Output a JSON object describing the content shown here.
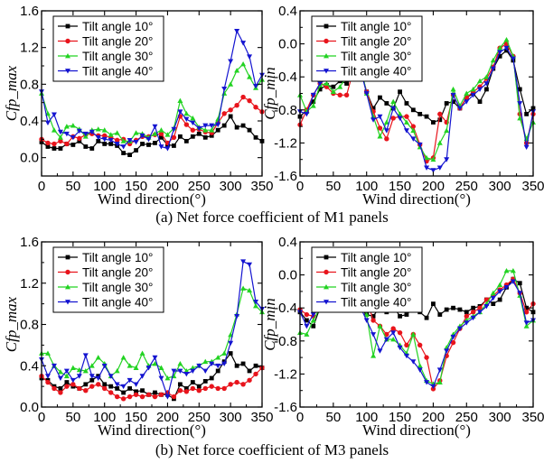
{
  "captions": [
    "(a) Net force coefficient of M1 panels",
    "(b) Net force coefficient of M3 panels"
  ],
  "series_colors": [
    "#000000",
    "#e8141c",
    "#22d322",
    "#1414d0"
  ],
  "chart_data": [
    {
      "type": "line",
      "xlabel": "Wind direction(°)",
      "ylabel": "Cfp_max",
      "xlim": [
        0,
        350
      ],
      "ylim": [
        -0.2,
        1.6
      ],
      "xticks": [
        "0",
        "50",
        "100",
        "150",
        "200",
        "250",
        "300",
        "350"
      ],
      "yticks": [
        "0.0",
        "0.4",
        "0.8",
        "1.2",
        "1.6"
      ],
      "legend_position": "top-left",
      "x": [
        0,
        10,
        20,
        30,
        40,
        50,
        60,
        70,
        80,
        90,
        100,
        110,
        120,
        130,
        140,
        150,
        160,
        170,
        180,
        190,
        200,
        210,
        220,
        230,
        240,
        250,
        260,
        270,
        280,
        290,
        300,
        310,
        320,
        330,
        340,
        350
      ],
      "series": [
        {
          "name": "Tilt angle 10°",
          "marker": "square",
          "values": [
            0.17,
            0.12,
            0.1,
            0.1,
            0.15,
            0.14,
            0.18,
            0.12,
            0.1,
            0.18,
            0.15,
            0.15,
            0.13,
            0.05,
            0.03,
            0.08,
            0.15,
            0.14,
            0.16,
            0.22,
            0.14,
            0.13,
            0.23,
            0.18,
            0.23,
            0.26,
            0.22,
            0.24,
            0.3,
            0.35,
            0.45,
            0.33,
            0.35,
            0.3,
            0.22,
            0.18
          ]
        },
        {
          "name": "Tilt angle 20°",
          "marker": "circle",
          "values": [
            0.2,
            0.16,
            0.15,
            0.18,
            0.15,
            0.23,
            0.21,
            0.25,
            0.26,
            0.24,
            0.24,
            0.22,
            0.19,
            0.2,
            0.15,
            0.19,
            0.23,
            0.23,
            0.25,
            0.26,
            0.16,
            0.22,
            0.45,
            0.36,
            0.3,
            0.31,
            0.28,
            0.27,
            0.38,
            0.48,
            0.52,
            0.57,
            0.66,
            0.62,
            0.55,
            0.5
          ]
        },
        {
          "name": "Tilt angle 30°",
          "marker": "triangle-up",
          "values": [
            0.7,
            0.48,
            0.3,
            0.22,
            0.34,
            0.35,
            0.31,
            0.23,
            0.3,
            0.31,
            0.3,
            0.25,
            0.27,
            0.18,
            0.18,
            0.27,
            0.26,
            0.22,
            0.26,
            0.3,
            0.25,
            0.32,
            0.62,
            0.48,
            0.43,
            0.33,
            0.3,
            0.3,
            0.42,
            0.7,
            0.8,
            0.95,
            1.02,
            0.88,
            0.76,
            0.85
          ]
        },
        {
          "name": "Tilt angle 40°",
          "marker": "triangle-down",
          "values": [
            0.72,
            0.38,
            0.47,
            0.28,
            0.26,
            0.22,
            0.29,
            0.26,
            0.28,
            0.22,
            0.2,
            0.19,
            0.15,
            0.12,
            0.19,
            0.17,
            0.24,
            0.2,
            0.34,
            0.12,
            0.1,
            0.31,
            0.5,
            0.42,
            0.38,
            0.32,
            0.35,
            0.35,
            0.36,
            0.75,
            1.05,
            1.38,
            1.25,
            1.1,
            0.78,
            0.9
          ]
        }
      ]
    },
    {
      "type": "line",
      "xlabel": "Wind direction(°)",
      "ylabel": "Cfp_min",
      "xlim": [
        0,
        350
      ],
      "ylim": [
        -1.6,
        0.4
      ],
      "xticks": [
        "0",
        "50",
        "100",
        "150",
        "200",
        "250",
        "300",
        "350"
      ],
      "yticks": [
        "-1.6",
        "-1.2",
        "-0.8",
        "-0.4",
        "0.0",
        "0.4"
      ],
      "legend_position": "top-left",
      "x": [
        0,
        10,
        20,
        30,
        40,
        50,
        60,
        70,
        80,
        90,
        100,
        110,
        120,
        130,
        140,
        150,
        160,
        170,
        180,
        190,
        200,
        210,
        220,
        230,
        240,
        250,
        260,
        270,
        280,
        290,
        300,
        310,
        320,
        330,
        340,
        350
      ],
      "series": [
        {
          "name": "Tilt angle 10°",
          "marker": "square",
          "values": [
            -0.88,
            -0.8,
            -0.7,
            -0.55,
            -0.5,
            -0.52,
            -0.45,
            -0.48,
            -0.4,
            -0.28,
            -0.58,
            -0.78,
            -0.65,
            -0.72,
            -0.78,
            -0.58,
            -0.72,
            -0.8,
            -0.85,
            -0.88,
            -0.95,
            -0.92,
            -0.72,
            -0.7,
            -0.78,
            -0.65,
            -0.6,
            -0.7,
            -0.55,
            -0.3,
            -0.15,
            -0.08,
            -0.2,
            -0.55,
            -0.85,
            -0.78
          ]
        },
        {
          "name": "Tilt angle 20°",
          "marker": "circle",
          "values": [
            -0.98,
            -0.8,
            -0.62,
            -0.48,
            -0.52,
            -0.6,
            -0.62,
            -0.62,
            -0.32,
            -0.28,
            -0.58,
            -0.82,
            -1.02,
            -1.15,
            -0.9,
            -0.88,
            -0.88,
            -1.0,
            -1.22,
            -1.42,
            -1.38,
            -0.85,
            -0.95,
            -0.62,
            -0.78,
            -0.65,
            -0.58,
            -0.52,
            -0.42,
            -0.28,
            -0.05,
            0.0,
            -0.15,
            -0.85,
            -1.2,
            -0.85
          ]
        },
        {
          "name": "Tilt angle 30°",
          "marker": "triangle-up",
          "values": [
            -0.62,
            -0.82,
            -0.75,
            -0.5,
            -0.48,
            -0.58,
            -0.52,
            -0.4,
            -0.3,
            -0.22,
            -0.6,
            -0.88,
            -1.12,
            -0.95,
            -0.7,
            -0.85,
            -0.95,
            -1.05,
            -1.25,
            -1.38,
            -1.4,
            -1.2,
            -1.05,
            -0.55,
            -0.75,
            -0.6,
            -0.55,
            -0.45,
            -0.4,
            -0.2,
            -0.05,
            0.05,
            -0.15,
            -0.9,
            -1.15,
            -0.95
          ]
        },
        {
          "name": "Tilt angle 40°",
          "marker": "triangle-down",
          "values": [
            -0.82,
            -0.85,
            -0.62,
            -0.48,
            -0.42,
            -0.4,
            -0.38,
            -0.35,
            -0.32,
            -0.28,
            -0.6,
            -0.92,
            -0.88,
            -1.05,
            -0.78,
            -0.9,
            -1.05,
            -1.15,
            -1.22,
            -1.5,
            -1.53,
            -1.5,
            -1.4,
            -0.62,
            -0.78,
            -0.7,
            -0.62,
            -0.55,
            -0.48,
            -0.3,
            -0.1,
            -0.05,
            -0.18,
            -0.72,
            -1.25,
            -0.82
          ]
        }
      ]
    },
    {
      "type": "line",
      "xlabel": "Wind direction(°)",
      "ylabel": "Cfp_max",
      "xlim": [
        0,
        350
      ],
      "ylim": [
        0.0,
        1.6
      ],
      "xticks": [
        "0",
        "50",
        "100",
        "150",
        "200",
        "250",
        "300",
        "350"
      ],
      "yticks": [
        "0.0",
        "0.4",
        "0.8",
        "1.2",
        "1.6"
      ],
      "legend_position": "top-left",
      "x": [
        0,
        10,
        20,
        30,
        40,
        50,
        60,
        70,
        80,
        90,
        100,
        110,
        120,
        130,
        140,
        150,
        160,
        170,
        180,
        190,
        200,
        210,
        220,
        230,
        240,
        250,
        260,
        270,
        280,
        290,
        300,
        310,
        320,
        330,
        340,
        350
      ],
      "series": [
        {
          "name": "Tilt angle 10°",
          "marker": "square",
          "values": [
            0.28,
            0.26,
            0.2,
            0.18,
            0.24,
            0.2,
            0.18,
            0.22,
            0.26,
            0.3,
            0.22,
            0.2,
            0.18,
            0.14,
            0.18,
            0.15,
            0.16,
            0.12,
            0.14,
            0.12,
            0.12,
            0.08,
            0.22,
            0.18,
            0.24,
            0.2,
            0.25,
            0.28,
            0.35,
            0.44,
            0.52,
            0.4,
            0.42,
            0.35,
            0.4,
            0.38
          ]
        },
        {
          "name": "Tilt angle 20°",
          "marker": "circle",
          "values": [
            0.3,
            0.24,
            0.18,
            0.14,
            0.2,
            0.22,
            0.18,
            0.16,
            0.2,
            0.22,
            0.18,
            0.14,
            0.1,
            0.08,
            0.1,
            0.12,
            0.1,
            0.12,
            0.1,
            0.12,
            0.14,
            0.1,
            0.16,
            0.15,
            0.18,
            0.16,
            0.18,
            0.2,
            0.18,
            0.18,
            0.22,
            0.24,
            0.22,
            0.26,
            0.32,
            0.38
          ]
        },
        {
          "name": "Tilt angle 30°",
          "marker": "triangle-up",
          "values": [
            0.52,
            0.52,
            0.4,
            0.34,
            0.3,
            0.38,
            0.36,
            0.35,
            0.4,
            0.48,
            0.42,
            0.3,
            0.35,
            0.48,
            0.4,
            0.38,
            0.52,
            0.4,
            0.42,
            0.38,
            0.28,
            0.3,
            0.42,
            0.35,
            0.38,
            0.4,
            0.44,
            0.44,
            0.48,
            0.52,
            0.7,
            0.9,
            1.15,
            1.13,
            0.98,
            0.92
          ]
        },
        {
          "name": "Tilt angle 40°",
          "marker": "triangle-down",
          "values": [
            0.46,
            0.3,
            0.4,
            0.28,
            0.35,
            0.26,
            0.3,
            0.5,
            0.3,
            0.28,
            0.4,
            0.3,
            0.22,
            0.2,
            0.26,
            0.22,
            0.3,
            0.38,
            0.48,
            0.28,
            0.1,
            0.35,
            0.35,
            0.32,
            0.35,
            0.4,
            0.35,
            0.42,
            0.4,
            0.42,
            0.62,
            0.88,
            1.41,
            1.38,
            1.02,
            0.95
          ]
        }
      ]
    },
    {
      "type": "line",
      "xlabel": "Wind direction(°)",
      "ylabel": "Cfp_min",
      "xlim": [
        0,
        350
      ],
      "ylim": [
        -1.6,
        0.4
      ],
      "xticks": [
        "0",
        "50",
        "100",
        "150",
        "200",
        "250",
        "300",
        "350"
      ],
      "yticks": [
        "-1.6",
        "-1.2",
        "-0.8",
        "-0.4",
        "0.0",
        "0.4"
      ],
      "legend_position": "top-left",
      "x": [
        0,
        10,
        20,
        30,
        40,
        50,
        60,
        70,
        80,
        90,
        100,
        110,
        120,
        130,
        140,
        150,
        160,
        170,
        180,
        190,
        200,
        210,
        220,
        230,
        240,
        250,
        260,
        270,
        280,
        290,
        300,
        310,
        320,
        330,
        340,
        350
      ],
      "series": [
        {
          "name": "Tilt angle 10°",
          "marker": "square",
          "values": [
            -0.45,
            -0.55,
            -0.62,
            -0.4,
            -0.38,
            -0.35,
            -0.3,
            -0.2,
            -0.15,
            -0.4,
            -0.48,
            -0.5,
            -0.38,
            -0.45,
            -0.38,
            -0.5,
            -0.48,
            -0.4,
            -0.45,
            -0.52,
            -0.35,
            -0.48,
            -0.42,
            -0.4,
            -0.42,
            -0.45,
            -0.4,
            -0.38,
            -0.3,
            -0.35,
            -0.3,
            -0.15,
            -0.05,
            -0.1,
            -0.4,
            -0.45
          ]
        },
        {
          "name": "Tilt angle 20°",
          "marker": "circle",
          "values": [
            -0.42,
            -0.48,
            -0.5,
            -0.35,
            -0.3,
            -0.28,
            -0.2,
            -0.12,
            -0.1,
            -0.2,
            -0.3,
            -0.55,
            -0.62,
            -0.72,
            -0.65,
            -0.7,
            -0.85,
            -0.72,
            -0.85,
            -1.0,
            -1.38,
            -1.28,
            -0.98,
            -0.82,
            -0.65,
            -0.5,
            -0.45,
            -0.4,
            -0.3,
            -0.25,
            -0.18,
            -0.12,
            -0.05,
            -0.22,
            -0.45,
            -0.35
          ]
        },
        {
          "name": "Tilt angle 30°",
          "marker": "triangle-up",
          "values": [
            -0.7,
            -0.72,
            -0.55,
            -0.4,
            -0.32,
            -0.3,
            -0.22,
            -0.18,
            -0.15,
            -0.28,
            -0.48,
            -0.98,
            -0.62,
            -0.78,
            -0.78,
            -0.85,
            -0.95,
            -0.72,
            -1.1,
            -1.28,
            -1.32,
            -1.3,
            -0.88,
            -0.72,
            -0.62,
            -0.55,
            -0.5,
            -0.45,
            -0.35,
            -0.22,
            -0.12,
            0.05,
            0.05,
            -0.25,
            -0.62,
            -0.55
          ]
        },
        {
          "name": "Tilt angle 40°",
          "marker": "triangle-down",
          "values": [
            -0.45,
            -0.62,
            -0.48,
            -0.35,
            -0.32,
            -0.28,
            -0.25,
            -0.2,
            -0.22,
            -0.38,
            -0.55,
            -0.72,
            -0.92,
            -0.78,
            -0.7,
            -0.88,
            -0.98,
            -1.05,
            -1.15,
            -1.3,
            -1.35,
            -1.15,
            -0.92,
            -0.75,
            -0.65,
            -0.58,
            -0.52,
            -0.45,
            -0.38,
            -0.28,
            -0.2,
            -0.15,
            -0.08,
            -0.22,
            -0.58,
            -0.55
          ]
        }
      ]
    }
  ]
}
